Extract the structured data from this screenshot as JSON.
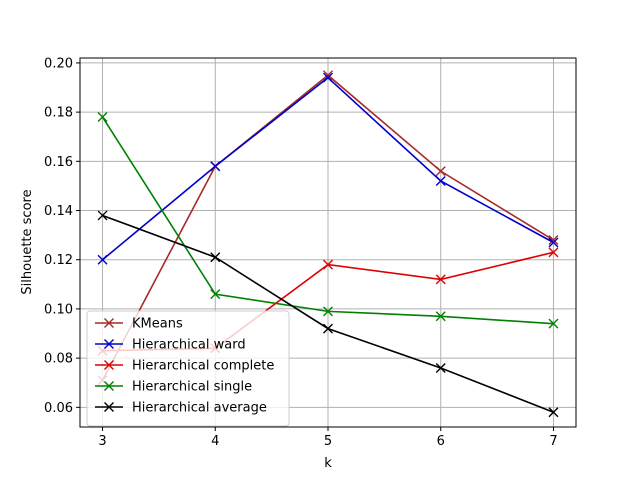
{
  "chart_data": {
    "type": "line",
    "title": "",
    "xlabel": "k",
    "ylabel": "Silhouette score",
    "x": [
      3,
      4,
      5,
      6,
      7
    ],
    "xlim": [
      2.8,
      7.2
    ],
    "ylim": [
      0.052,
      0.202
    ],
    "yticks": [
      0.06,
      0.08,
      0.1,
      0.12,
      0.14,
      0.16,
      0.18,
      0.2
    ],
    "ytick_labels": [
      "0.06",
      "0.08",
      "0.10",
      "0.12",
      "0.14",
      "0.16",
      "0.18",
      "0.20"
    ],
    "xtick_labels": [
      "3",
      "4",
      "5",
      "6",
      "7"
    ],
    "grid": true,
    "legend_position": "lower-left",
    "marker": "x",
    "series": [
      {
        "name": "KMeans",
        "color": "#a52a2a",
        "values": [
          0.071,
          0.158,
          0.195,
          0.156,
          0.128
        ]
      },
      {
        "name": "Hierarchical ward",
        "color": "#0000cc",
        "values": [
          0.12,
          0.158,
          0.194,
          0.152,
          0.127
        ]
      },
      {
        "name": "Hierarchical complete",
        "color": "#e00000",
        "values": [
          0.083,
          0.084,
          0.118,
          0.112,
          0.123
        ]
      },
      {
        "name": "Hierarchical single",
        "color": "#008000",
        "values": [
          0.178,
          0.106,
          0.099,
          0.097,
          0.094
        ]
      },
      {
        "name": "Hierarchical average",
        "color": "#000000",
        "values": [
          0.138,
          0.121,
          0.092,
          0.076,
          0.058
        ]
      }
    ]
  }
}
